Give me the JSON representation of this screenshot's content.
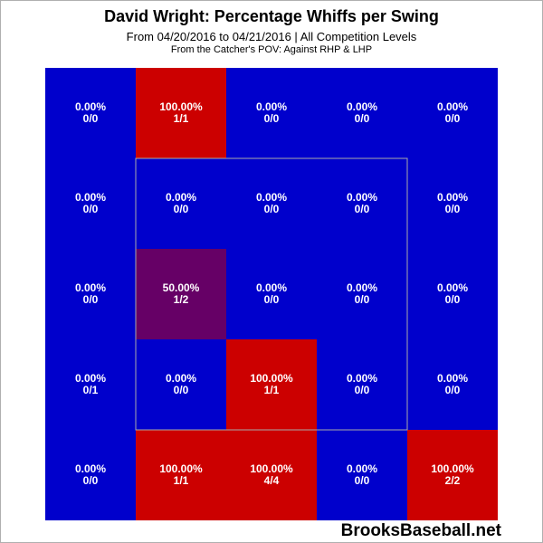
{
  "title": "David Wright: Percentage Whiffs per Swing",
  "subtitle": "From 04/20/2016 to 04/21/2016 | All Competition Levels",
  "subtitle2": "From the Catcher's POV:   Against RHP & LHP",
  "watermark": "BrooksBaseball.net",
  "colors": {
    "low": "#0000cc",
    "mid": "#660066",
    "high": "#cc0000",
    "label": "#ffffff",
    "strike_zone": "#aaaaaa"
  },
  "chart_data": {
    "type": "heatmap",
    "title": "David Wright: Percentage Whiffs per Swing",
    "rows": 5,
    "cols": 5,
    "strike_zone_cells": {
      "rows": [
        1,
        3
      ],
      "cols": [
        1,
        3
      ]
    },
    "cells": [
      [
        {
          "pct": "0.00%",
          "count": "0/0",
          "value": 0
        },
        {
          "pct": "100.00%",
          "count": "1/1",
          "value": 100
        },
        {
          "pct": "0.00%",
          "count": "0/0",
          "value": 0
        },
        {
          "pct": "0.00%",
          "count": "0/0",
          "value": 0
        },
        {
          "pct": "0.00%",
          "count": "0/0",
          "value": 0
        }
      ],
      [
        {
          "pct": "0.00%",
          "count": "0/0",
          "value": 0
        },
        {
          "pct": "0.00%",
          "count": "0/0",
          "value": 0
        },
        {
          "pct": "0.00%",
          "count": "0/0",
          "value": 0
        },
        {
          "pct": "0.00%",
          "count": "0/0",
          "value": 0
        },
        {
          "pct": "0.00%",
          "count": "0/0",
          "value": 0
        }
      ],
      [
        {
          "pct": "0.00%",
          "count": "0/0",
          "value": 0
        },
        {
          "pct": "50.00%",
          "count": "1/2",
          "value": 50
        },
        {
          "pct": "0.00%",
          "count": "0/0",
          "value": 0
        },
        {
          "pct": "0.00%",
          "count": "0/0",
          "value": 0
        },
        {
          "pct": "0.00%",
          "count": "0/0",
          "value": 0
        }
      ],
      [
        {
          "pct": "0.00%",
          "count": "0/1",
          "value": 0
        },
        {
          "pct": "0.00%",
          "count": "0/0",
          "value": 0
        },
        {
          "pct": "100.00%",
          "count": "1/1",
          "value": 100
        },
        {
          "pct": "0.00%",
          "count": "0/0",
          "value": 0
        },
        {
          "pct": "0.00%",
          "count": "0/0",
          "value": 0
        }
      ],
      [
        {
          "pct": "0.00%",
          "count": "0/0",
          "value": 0
        },
        {
          "pct": "100.00%",
          "count": "1/1",
          "value": 100
        },
        {
          "pct": "100.00%",
          "count": "4/4",
          "value": 100
        },
        {
          "pct": "0.00%",
          "count": "0/0",
          "value": 0
        },
        {
          "pct": "100.00%",
          "count": "2/2",
          "value": 100
        }
      ]
    ]
  }
}
